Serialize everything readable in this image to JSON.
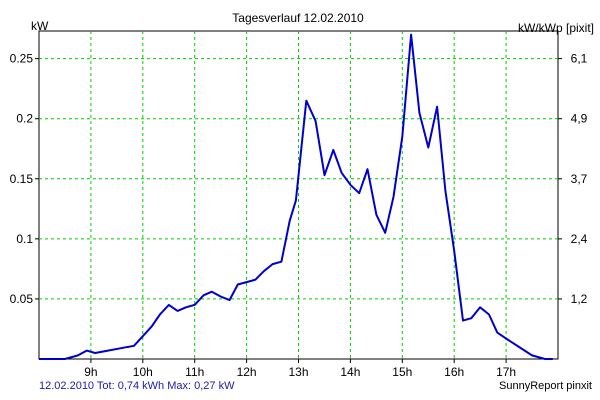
{
  "chart_data": {
    "type": "line",
    "title": "Tagesverlauf 12.02.2010",
    "ylabel": "kW",
    "y2label": "kW/kWp [pixit]",
    "xlim": [
      8.0,
      18.0
    ],
    "ylim": [
      0,
      0.273
    ],
    "grid": true,
    "legend": "none",
    "x_ticks": [
      {
        "value": 9,
        "label": "9h"
      },
      {
        "value": 10,
        "label": "10h"
      },
      {
        "value": 11,
        "label": "11h"
      },
      {
        "value": 12,
        "label": "12h"
      },
      {
        "value": 13,
        "label": "13h"
      },
      {
        "value": 14,
        "label": "14h"
      },
      {
        "value": 15,
        "label": "15h"
      },
      {
        "value": 16,
        "label": "16h"
      },
      {
        "value": 17,
        "label": "17h"
      }
    ],
    "y_ticks": [
      {
        "value": 0.05,
        "label": "0.05"
      },
      {
        "value": 0.1,
        "label": "0.1"
      },
      {
        "value": 0.15,
        "label": "0.15"
      },
      {
        "value": 0.2,
        "label": "0.2"
      },
      {
        "value": 0.25,
        "label": "0.25"
      }
    ],
    "y2_ticks": [
      {
        "value": 0.05,
        "label": "1,2"
      },
      {
        "value": 0.1,
        "label": "2,4"
      },
      {
        "value": 0.15,
        "label": "3,7"
      },
      {
        "value": 0.2,
        "label": "4,9"
      },
      {
        "value": 0.25,
        "label": "6,1"
      }
    ],
    "series": [
      {
        "color": "#0000cc",
        "x": [
          8.0,
          8.5,
          8.75,
          8.92,
          9.08,
          9.33,
          9.58,
          9.83,
          10.0,
          10.17,
          10.33,
          10.5,
          10.67,
          10.83,
          11.0,
          11.17,
          11.33,
          11.5,
          11.67,
          11.83,
          12.0,
          12.17,
          12.33,
          12.5,
          12.67,
          12.83,
          12.95,
          13.15,
          13.33,
          13.5,
          13.67,
          13.83,
          14.0,
          14.17,
          14.33,
          14.5,
          14.67,
          14.83,
          15.0,
          15.17,
          15.33,
          15.5,
          15.67,
          15.83,
          16.0,
          16.17,
          16.33,
          16.5,
          16.67,
          16.83,
          17.0,
          17.25,
          17.5,
          17.75,
          17.9
        ],
        "y": [
          0.0,
          0.0,
          0.003,
          0.007,
          0.005,
          0.007,
          0.009,
          0.011,
          0.019,
          0.027,
          0.037,
          0.045,
          0.04,
          0.043,
          0.045,
          0.053,
          0.056,
          0.052,
          0.049,
          0.062,
          0.064,
          0.066,
          0.073,
          0.079,
          0.081,
          0.115,
          0.132,
          0.215,
          0.198,
          0.153,
          0.174,
          0.155,
          0.145,
          0.138,
          0.158,
          0.12,
          0.105,
          0.135,
          0.185,
          0.27,
          0.205,
          0.176,
          0.21,
          0.14,
          0.09,
          0.032,
          0.034,
          0.043,
          0.037,
          0.022,
          0.017,
          0.01,
          0.003,
          0.0,
          0.0
        ]
      }
    ]
  },
  "footer": {
    "summary": "12.02.2010 Tot: 0,74 kWh Max: 0,27 kW",
    "brand": "SunnyReport pinxit"
  }
}
